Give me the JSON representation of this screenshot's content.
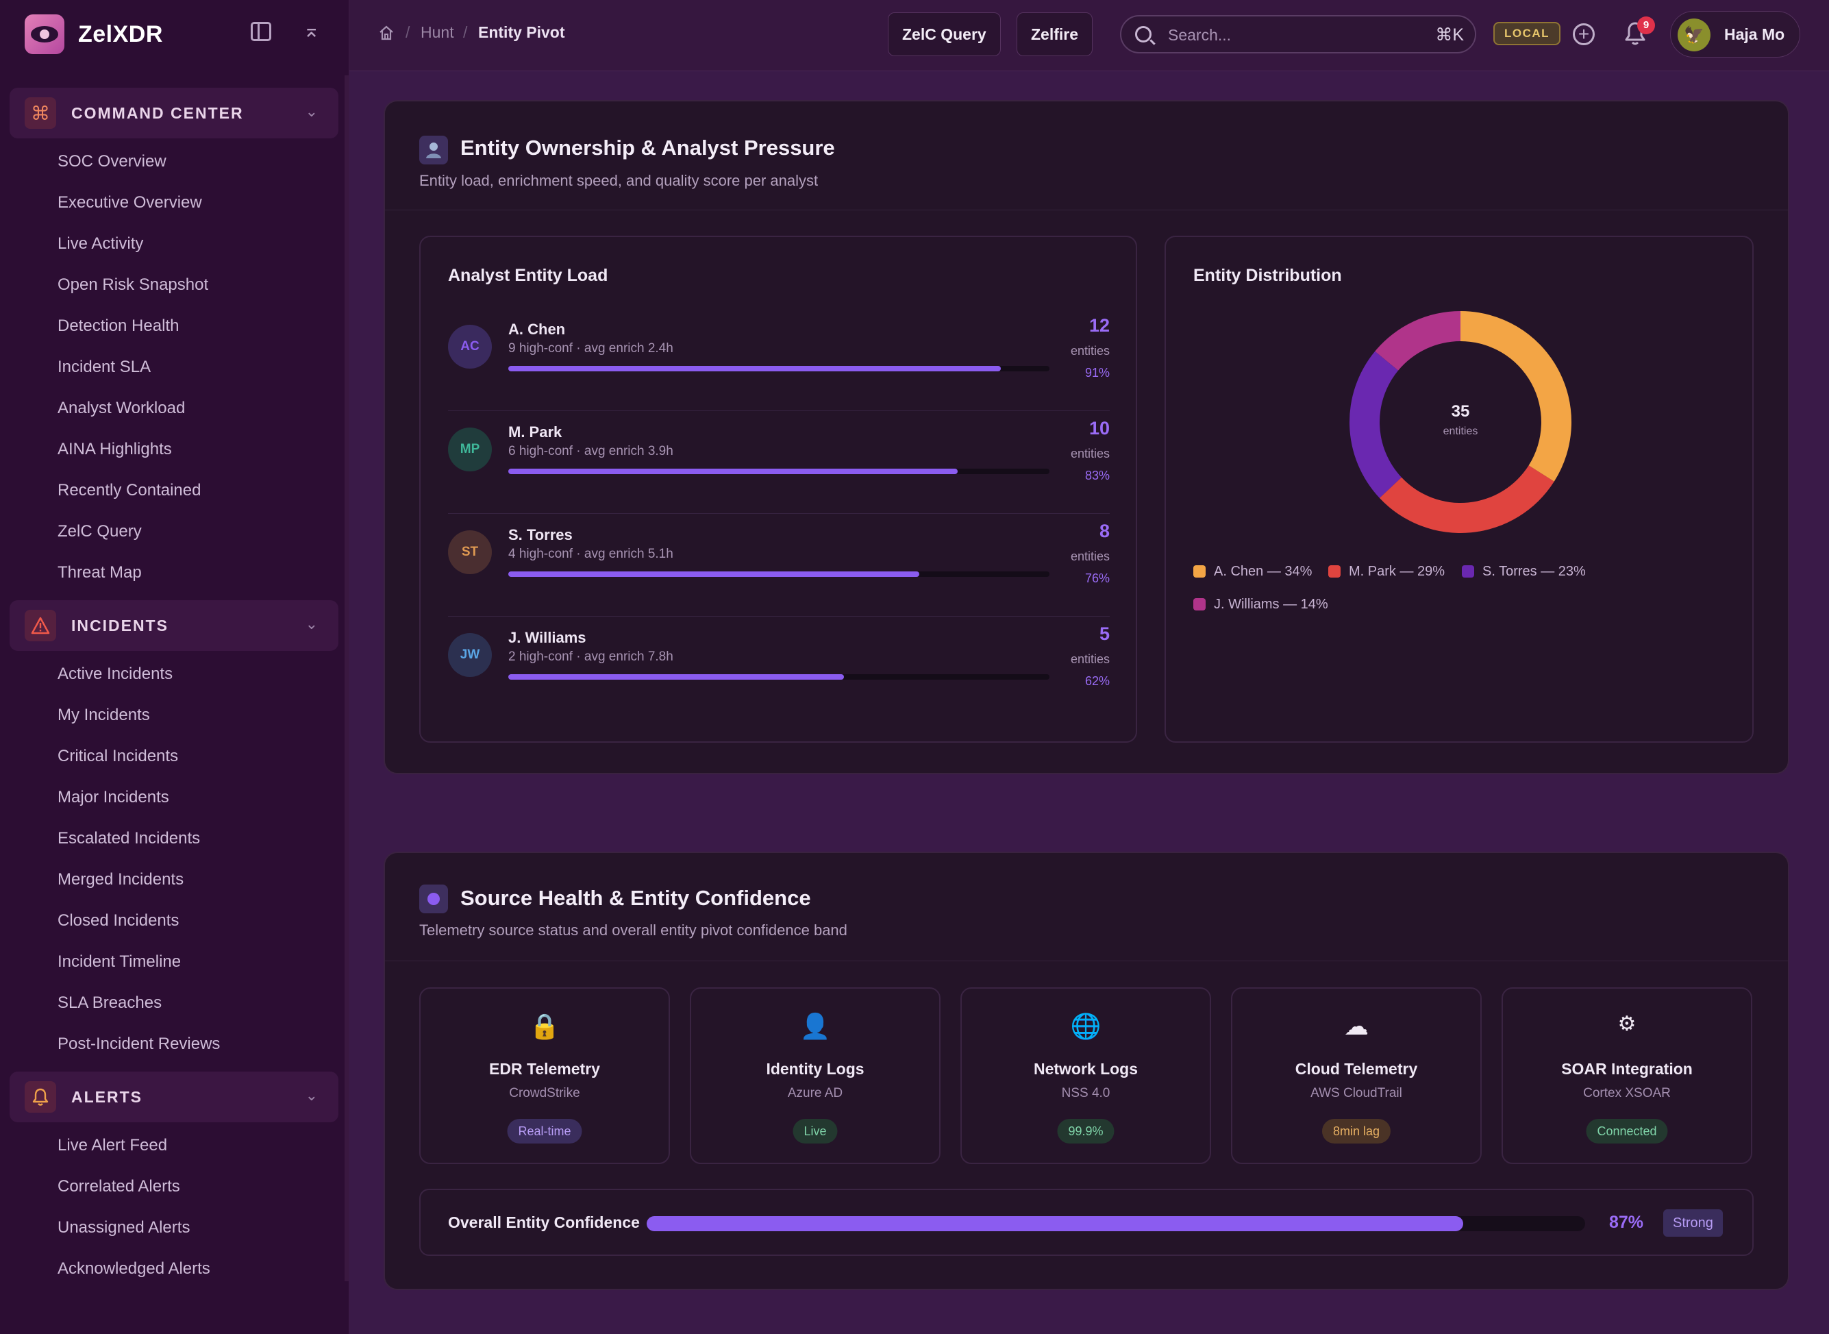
{
  "app": {
    "name": "ZelXDR"
  },
  "sidebar": {
    "sections": [
      {
        "title": "COMMAND CENTER",
        "items": [
          "SOC Overview",
          "Executive Overview",
          "Live Activity",
          "Open Risk Snapshot",
          "Detection Health",
          "Incident SLA",
          "Analyst Workload",
          "AINA Highlights",
          "Recently Contained",
          "ZelC Query",
          "Threat Map"
        ]
      },
      {
        "title": "INCIDENTS",
        "items": [
          "Active Incidents",
          "My Incidents",
          "Critical Incidents",
          "Major Incidents",
          "Escalated Incidents",
          "Merged Incidents",
          "Closed Incidents",
          "Incident Timeline",
          "SLA Breaches",
          "Post-Incident Reviews"
        ]
      },
      {
        "title": "ALERTS",
        "items": [
          "Live Alert Feed",
          "Correlated Alerts",
          "Unassigned Alerts",
          "Acknowledged Alerts"
        ]
      }
    ]
  },
  "topbar": {
    "breadcrumb": [
      "Hunt",
      "Entity Pivot"
    ],
    "buttons": [
      "ZelC Query",
      "Zelfire"
    ],
    "search_placeholder": "Search...",
    "search_shortcut": "⌘K",
    "env_badge": "LOCAL",
    "notification_count": "9",
    "user_name": "Haja Mo"
  },
  "ownership": {
    "title": "Entity Ownership & Analyst Pressure",
    "subtitle": "Entity load, enrichment speed, and quality score per analyst",
    "load_card_title": "Analyst Entity Load",
    "analysts": [
      {
        "initials": "AC",
        "name": "A. Chen",
        "meta": "9 high-conf · avg enrich 2.4h",
        "count": "12",
        "unit": "entities",
        "pct": "91%",
        "fill": 0.91,
        "color": "#8b5cf0",
        "bg": "#3a2a5e"
      },
      {
        "initials": "MP",
        "name": "M. Park",
        "meta": "6 high-conf · avg enrich 3.9h",
        "count": "10",
        "unit": "entities",
        "pct": "83%",
        "fill": 0.83,
        "color": "#3fb89a",
        "bg": "#203c3c"
      },
      {
        "initials": "ST",
        "name": "S. Torres",
        "meta": "4 high-conf · avg enrich 5.1h",
        "count": "8",
        "unit": "entities",
        "pct": "76%",
        "fill": 0.76,
        "color": "#e09a52",
        "bg": "#4a2e30"
      },
      {
        "initials": "JW",
        "name": "J. Williams",
        "meta": "2 high-conf · avg enrich 7.8h",
        "count": "5",
        "unit": "entities",
        "pct": "62%",
        "fill": 0.62,
        "color": "#5aa6e6",
        "bg": "#2c3050"
      }
    ],
    "distribution_title": "Entity Distribution"
  },
  "chart_data": {
    "type": "pie",
    "title": "Entity Distribution",
    "center_value": "35",
    "center_label": "entities",
    "categories": [
      "A. Chen",
      "M. Park",
      "S. Torres",
      "J. Williams"
    ],
    "values": [
      34,
      29,
      23,
      14
    ],
    "labels": [
      "A. Chen — 34%",
      "M. Park — 29%",
      "S. Torres — 23%",
      "J. Williams — 14%"
    ],
    "colors": [
      "#f3a545",
      "#e0443f",
      "#6a28b0",
      "#b0348a"
    ],
    "legend_position": "bottom"
  },
  "source_health": {
    "title": "Source Health & Entity Confidence",
    "subtitle": "Telemetry source status and overall entity pivot confidence band",
    "sources": [
      {
        "icon": "lock-icon",
        "glyph": "🔒",
        "name": "EDR Telemetry",
        "vendor": "CrowdStrike",
        "status": "Real-time",
        "status_color": "#b79cf5",
        "status_bg": "#3a2d5c"
      },
      {
        "icon": "user-icon",
        "glyph": "👤",
        "name": "Identity Logs",
        "vendor": "Azure AD",
        "status": "Live",
        "status_color": "#7fd3a8",
        "status_bg": "#23382f"
      },
      {
        "icon": "globe-icon",
        "glyph": "🌐",
        "name": "Network Logs",
        "vendor": "NSS 4.0",
        "status": "99.9%",
        "status_color": "#7fd3a8",
        "status_bg": "#23382f"
      },
      {
        "icon": "cloud-icon",
        "glyph": "☁",
        "name": "Cloud Telemetry",
        "vendor": "AWS CloudTrail",
        "status": "8min lag",
        "status_color": "#e7b063",
        "status_bg": "#4a3326"
      },
      {
        "icon": "gear-icon",
        "glyph": "⚙",
        "name": "SOAR Integration",
        "vendor": "Cortex XSOAR",
        "status": "Connected",
        "status_color": "#7fd3a8",
        "status_bg": "#23382f"
      }
    ],
    "confidence_label": "Overall Entity Confidence",
    "confidence_pct": "87%",
    "confidence_value": 0.87,
    "confidence_badge": "Strong"
  }
}
